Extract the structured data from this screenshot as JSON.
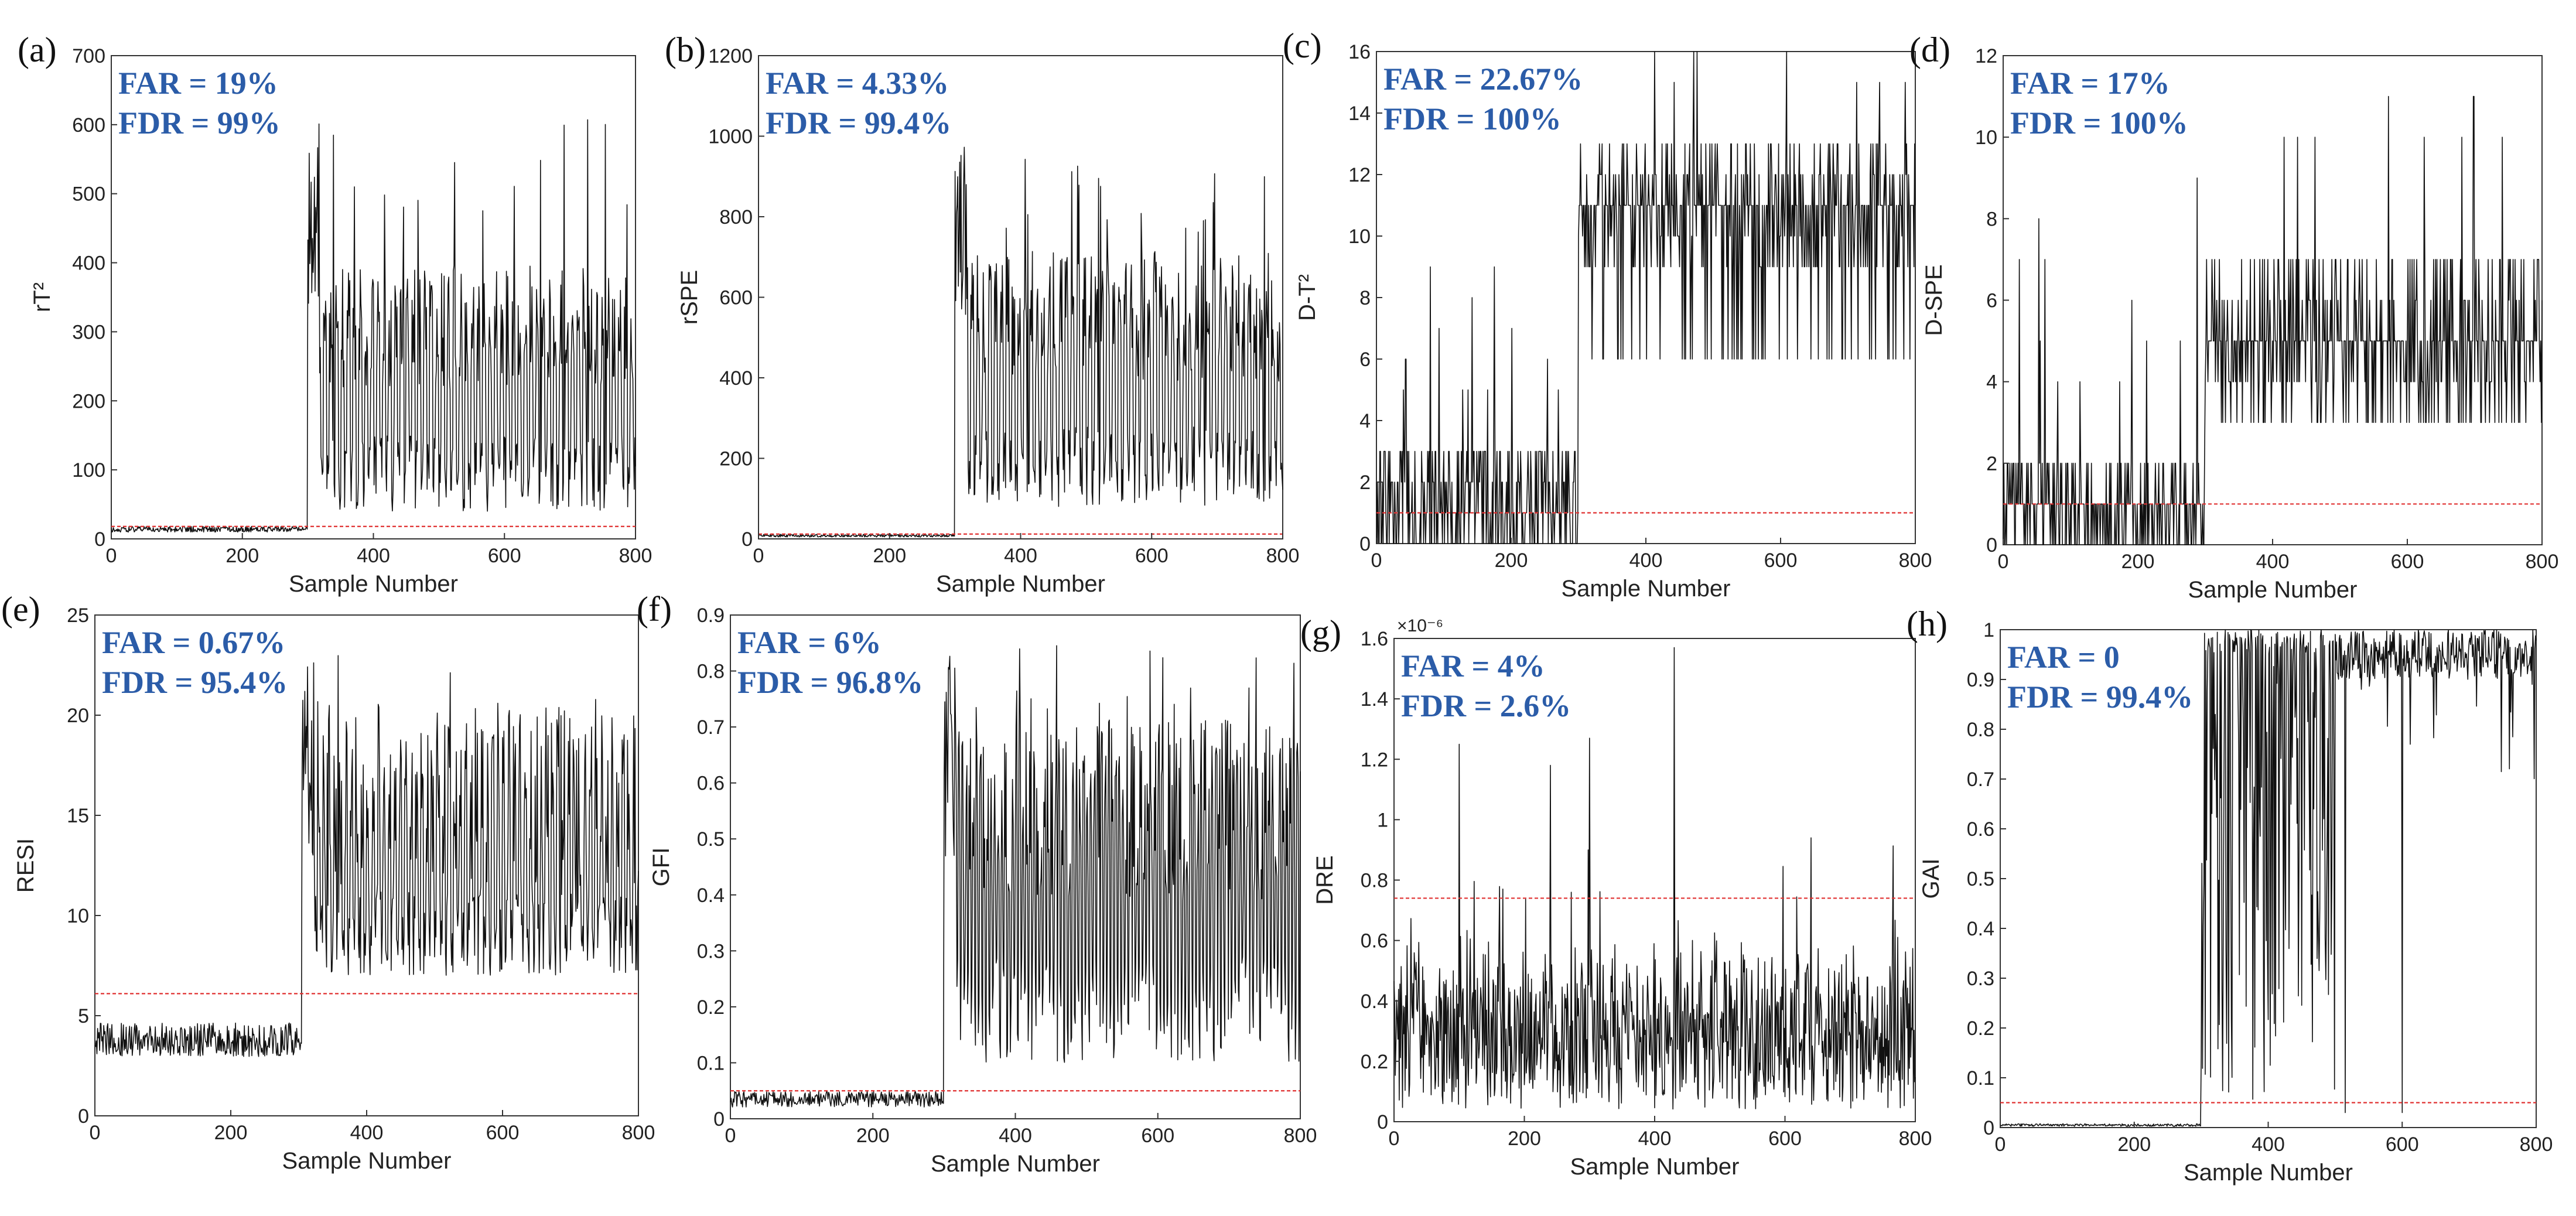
{
  "colors": {
    "signal": "#111111",
    "threshold": "#e03030",
    "metric_text": "#2b5ca8",
    "axes": "#333333"
  },
  "chart_data": [
    {
      "id": "a",
      "type": "line",
      "panel_label": "(a)",
      "ylabel": "rT²",
      "xlabel": "Sample Number",
      "xlim": [
        0,
        800
      ],
      "ylim": [
        0,
        700
      ],
      "xticks": [
        0,
        200,
        400,
        600,
        800
      ],
      "yticks": [
        0,
        100,
        200,
        300,
        400,
        500,
        600,
        700
      ],
      "xtick_labels": [
        "0",
        "200",
        "400",
        "600",
        "800"
      ],
      "ytick_labels": [
        "0",
        "100",
        "200",
        "300",
        "400",
        "500",
        "600",
        "700"
      ],
      "threshold": 18,
      "far": "FAR = 19%",
      "fdr": "FDR = 99%",
      "signal": {
        "fault_start": 300,
        "pre_mean": 14,
        "pre_amp": 6,
        "post_low": 40,
        "post_high": 360,
        "peak": 620,
        "period": 9
      }
    },
    {
      "id": "b",
      "type": "line",
      "panel_label": "(b)",
      "ylabel": "rSPE",
      "xlabel": "Sample Number",
      "xlim": [
        0,
        800
      ],
      "ylim": [
        0,
        1200
      ],
      "xticks": [
        0,
        200,
        400,
        600,
        800
      ],
      "yticks": [
        0,
        200,
        400,
        600,
        800,
        1000,
        1200
      ],
      "xtick_labels": [
        "0",
        "200",
        "400",
        "600",
        "800"
      ],
      "ytick_labels": [
        "0",
        "200",
        "400",
        "600",
        "800",
        "1000",
        "1200"
      ],
      "threshold": 12,
      "far": "FAR = 4.33%",
      "fdr": "FDR = 99.4%",
      "signal": {
        "fault_start": 300,
        "pre_mean": 8,
        "pre_amp": 5,
        "post_low": 80,
        "post_high": 650,
        "peak": 1000,
        "period": 9
      }
    },
    {
      "id": "c",
      "type": "line",
      "panel_label": "(c)",
      "ylabel": "D-T²",
      "xlabel": "Sample Number",
      "xlim": [
        0,
        800
      ],
      "ylim": [
        0,
        16
      ],
      "xticks": [
        0,
        200,
        400,
        600,
        800
      ],
      "yticks": [
        0,
        2,
        4,
        6,
        8,
        10,
        12,
        14,
        16
      ],
      "xtick_labels": [
        "0",
        "200",
        "400",
        "600",
        "800"
      ],
      "ytick_labels": [
        "0",
        "2",
        "4",
        "6",
        "8",
        "10",
        "12",
        "14",
        "16"
      ],
      "threshold": 1,
      "far": "FAR = 22.67%",
      "fdr": "FDR = 100%",
      "signal": {
        "fault_start": 300,
        "discrete": true,
        "pre_values": [
          0,
          0,
          1,
          2,
          3
        ],
        "post_values": [
          6,
          9,
          10,
          11,
          11,
          11,
          12,
          13
        ],
        "spike": 16
      }
    },
    {
      "id": "d",
      "type": "line",
      "panel_label": "(d)",
      "ylabel": "D-SPE",
      "xlabel": "Sample Number",
      "xlim": [
        0,
        800
      ],
      "ylim": [
        0,
        12
      ],
      "xticks": [
        0,
        200,
        400,
        600,
        800
      ],
      "yticks": [
        0,
        2,
        4,
        6,
        8,
        10,
        12
      ],
      "xtick_labels": [
        "0",
        "200",
        "400",
        "600",
        "800"
      ],
      "ytick_labels": [
        "0",
        "2",
        "4",
        "6",
        "8",
        "10",
        "12"
      ],
      "threshold": 1,
      "far": "FAR = 17%",
      "fdr": "FDR = 100%",
      "signal": {
        "fault_start": 300,
        "discrete": true,
        "pre_values": [
          0,
          0,
          1,
          1,
          2
        ],
        "post_values": [
          3,
          4,
          5,
          5,
          5,
          6,
          7
        ],
        "spike": 11
      }
    },
    {
      "id": "e",
      "type": "line",
      "panel_label": "(e)",
      "ylabel": "RESI",
      "xlabel": "Sample Number",
      "xlim": [
        0,
        800
      ],
      "ylim": [
        0,
        25
      ],
      "xticks": [
        0,
        200,
        400,
        600,
        800
      ],
      "yticks": [
        0,
        5,
        10,
        15,
        20,
        25
      ],
      "xtick_labels": [
        "0",
        "200",
        "400",
        "600",
        "800"
      ],
      "ytick_labels": [
        "0",
        "5",
        "10",
        "15",
        "20",
        "25"
      ],
      "threshold": 6.1,
      "far": "FAR = 0.67%",
      "fdr": "FDR = 95.4%",
      "signal": {
        "fault_start": 305,
        "pre_mean": 3.8,
        "pre_amp": 1.2,
        "post_low": 7,
        "post_high": 19,
        "peak": 23,
        "period": 8
      }
    },
    {
      "id": "f",
      "type": "line",
      "panel_label": "(f)",
      "ylabel": "GFI",
      "xlabel": "Sample Number",
      "xlim": [
        0,
        800
      ],
      "ylim": [
        0,
        0.9
      ],
      "xticks": [
        0,
        200,
        400,
        600,
        800
      ],
      "yticks": [
        0,
        0.1,
        0.2,
        0.3,
        0.4,
        0.5,
        0.6,
        0.7,
        0.8,
        0.9
      ],
      "xtick_labels": [
        "0",
        "200",
        "400",
        "600",
        "800"
      ],
      "ytick_labels": [
        "0",
        "0.1",
        "0.2",
        "0.3",
        "0.4",
        "0.5",
        "0.6",
        "0.7",
        "0.8",
        "0.9"
      ],
      "threshold": 0.05,
      "far": "FAR = 6%",
      "fdr": "FDR = 96.8%",
      "signal": {
        "fault_start": 300,
        "pre_mean": 0.035,
        "pre_amp": 0.02,
        "post_low": 0.1,
        "post_high": 0.65,
        "peak": 0.85,
        "period": 5
      }
    },
    {
      "id": "g",
      "type": "line",
      "panel_label": "(g)",
      "ylabel": "DRE",
      "xlabel": "Sample Number",
      "scale_label": "×10⁻⁶",
      "xlim": [
        0,
        800
      ],
      "ylim": [
        0,
        1.6
      ],
      "xticks": [
        0,
        200,
        400,
        600,
        800
      ],
      "yticks": [
        0,
        0.2,
        0.4,
        0.6,
        0.8,
        1,
        1.2,
        1.4,
        1.6
      ],
      "xtick_labels": [
        "0",
        "200",
        "400",
        "600",
        "800"
      ],
      "ytick_labels": [
        "0",
        "0.2",
        "0.4",
        "0.6",
        "0.8",
        "1",
        "1.2",
        "1.4",
        "1.6"
      ],
      "threshold": 0.74,
      "far": "FAR = 4%",
      "fdr": "FDR = 2.6%",
      "signal": {
        "noise_only": true,
        "base": 0.3,
        "amp": 0.25,
        "spikes": [
          [
            100,
            1.25
          ],
          [
            240,
            1.18
          ],
          [
            300,
            1.27
          ],
          [
            430,
            1.57
          ],
          [
            640,
            0.94
          ]
        ]
      }
    },
    {
      "id": "h",
      "type": "line",
      "panel_label": "(h)",
      "ylabel": "GAI",
      "xlabel": "Sample Number",
      "xlim": [
        0,
        800
      ],
      "ylim": [
        0,
        1
      ],
      "xticks": [
        0,
        200,
        400,
        600,
        800
      ],
      "yticks": [
        0,
        0.1,
        0.2,
        0.3,
        0.4,
        0.5,
        0.6,
        0.7,
        0.8,
        0.9,
        1
      ],
      "xtick_labels": [
        "0",
        "200",
        "400",
        "600",
        "800"
      ],
      "ytick_labels": [
        "0",
        "0.1",
        "0.2",
        "0.3",
        "0.4",
        "0.5",
        "0.6",
        "0.7",
        "0.8",
        "0.9",
        "1"
      ],
      "threshold": 0.05,
      "far": "FAR = 0",
      "fdr": "FDR = 99.4%",
      "signal": {
        "fault_start": 300,
        "saturating": true,
        "pre_mean": 0.004,
        "pre_amp": 0.005
      }
    }
  ]
}
